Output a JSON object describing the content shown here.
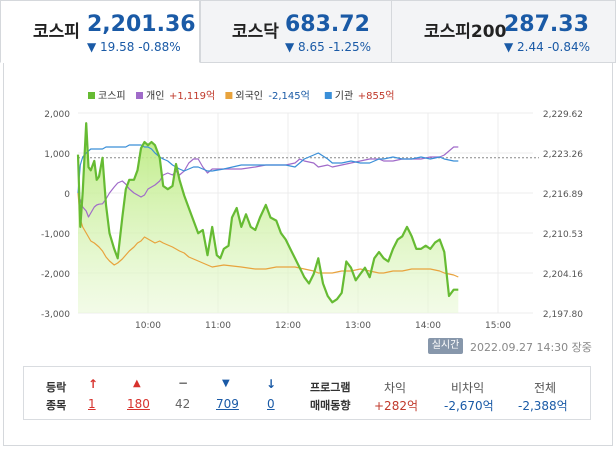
{
  "tabs": [
    {
      "name": "코스피",
      "value": "2,201.36",
      "change": "▼ 19.58 -0.88%",
      "active": true
    },
    {
      "name": "코스닥",
      "value": "683.72",
      "change": "▼ 8.65 -1.25%",
      "active": false
    },
    {
      "name": "코스피200",
      "value": "287.33",
      "change": "▼ 2.44 -0.84%",
      "active": false
    }
  ],
  "legend": [
    {
      "name": "코스피",
      "value": "",
      "color": "#66bb33",
      "value_color": ""
    },
    {
      "name": "개인",
      "value": "+1,119억",
      "color": "#a06bc9",
      "value_color": "#c0392b"
    },
    {
      "name": "외국인",
      "value": "-2,145억",
      "color": "#e8a33d",
      "value_color": "#1a5aa6"
    },
    {
      "name": "기관",
      "value": "+855억",
      "color": "#3a8fd8",
      "value_color": "#c0392b"
    }
  ],
  "chart_data": {
    "type": "line",
    "x_ticks": [
      "10:00",
      "11:00",
      "12:00",
      "13:00",
      "14:00",
      "15:00"
    ],
    "left_axis": {
      "ticks": [
        "2,000",
        "1,000",
        "0",
        "-1,000",
        "-2,000",
        "-3,000"
      ],
      "range": [
        -3000,
        2000
      ]
    },
    "right_axis": {
      "ticks": [
        "2,229.62",
        "2,223.26",
        "2,216.89",
        "2,210.53",
        "2,204.16",
        "2,197.80"
      ],
      "range": [
        2197.8,
        2229.62
      ]
    },
    "reference_level": 2222.5,
    "series": [
      {
        "name": "코스피",
        "axis": "right",
        "color": "#66bb33",
        "area": true,
        "x": [
          "09:00",
          "09:02",
          "09:04",
          "09:07",
          "09:09",
          "09:11",
          "09:14",
          "09:16",
          "09:18",
          "09:21",
          "09:24",
          "09:27",
          "09:31",
          "09:34",
          "09:38",
          "09:41",
          "09:44",
          "09:48",
          "09:51",
          "09:54",
          "09:57",
          "10:00",
          "10:03",
          "10:06",
          "10:10",
          "10:13",
          "10:17",
          "10:21",
          "10:24",
          "10:27",
          "10:31",
          "10:35",
          "10:39",
          "10:43",
          "10:47",
          "10:51",
          "10:55",
          "10:59",
          "11:02",
          "11:05",
          "11:09",
          "11:12",
          "11:16",
          "11:20",
          "11:24",
          "11:28",
          "11:32",
          "11:36",
          "11:41",
          "11:45",
          "11:50",
          "11:54",
          "11:58",
          "12:02",
          "12:06",
          "12:10",
          "12:14",
          "12:18",
          "12:22",
          "12:26",
          "12:30",
          "12:34",
          "12:38",
          "12:42",
          "12:46",
          "12:50",
          "12:54",
          "12:58",
          "13:02",
          "13:06",
          "13:10",
          "13:14",
          "13:18",
          "13:22",
          "13:26",
          "13:30",
          "13:34",
          "13:38",
          "13:42",
          "13:46",
          "13:50",
          "13:54",
          "13:58",
          "14:02",
          "14:06",
          "14:10",
          "14:14",
          "14:18",
          "14:22",
          "14:26"
        ],
        "values": [
          2223.0,
          2211.5,
          2217.0,
          2228.0,
          2221.0,
          2220.5,
          2222.0,
          2219.0,
          2219.5,
          2222.5,
          2215.0,
          2210.5,
          2208.0,
          2206.5,
          2213.0,
          2217.5,
          2219.0,
          2219.0,
          2220.5,
          2224.0,
          2225.0,
          2224.5,
          2225.0,
          2224.5,
          2222.5,
          2218.0,
          2217.5,
          2218.0,
          2221.5,
          2219.0,
          2216.5,
          2214.5,
          2212.5,
          2210.5,
          2211.0,
          2207.0,
          2211.5,
          2207.0,
          2206.5,
          2208.0,
          2208.5,
          2213.0,
          2214.5,
          2211.5,
          2213.5,
          2211.5,
          2211.0,
          2213.0,
          2215.0,
          2213.0,
          2212.5,
          2210.5,
          2209.5,
          2208.0,
          2206.5,
          2205.0,
          2203.5,
          2202.5,
          2204.0,
          2206.5,
          2202.5,
          2200.5,
          2199.5,
          2200.0,
          2201.0,
          2206.0,
          2205.0,
          2203.0,
          2204.0,
          2205.0,
          2203.5,
          2206.5,
          2207.5,
          2206.5,
          2206.0,
          2208.0,
          2209.5,
          2210.0,
          2211.5,
          2210.0,
          2208.0,
          2208.0,
          2208.5,
          2208.0,
          2209.0,
          2209.5,
          2207.5,
          2200.5,
          2201.5,
          2201.5
        ]
      },
      {
        "name": "개인",
        "axis": "left",
        "color": "#a06bc9",
        "x": [
          "09:00",
          "09:04",
          "09:07",
          "09:09",
          "09:11",
          "09:14",
          "09:16",
          "09:18",
          "09:21",
          "09:24",
          "09:27",
          "09:31",
          "09:34",
          "09:38",
          "09:41",
          "09:44",
          "09:48",
          "09:51",
          "09:54",
          "09:57",
          "10:00",
          "10:03",
          "10:06",
          "10:10",
          "10:13",
          "10:17",
          "10:21",
          "10:24",
          "10:27",
          "10:31",
          "10:35",
          "10:39",
          "10:43",
          "10:47",
          "10:51",
          "10:55",
          "11:05",
          "11:20",
          "11:32",
          "11:41",
          "11:50",
          "11:58",
          "12:06",
          "12:10",
          "12:14",
          "12:22",
          "12:26",
          "12:34",
          "12:38",
          "12:46",
          "12:54",
          "13:02",
          "13:10",
          "13:18",
          "13:22",
          "13:30",
          "13:38",
          "13:46",
          "13:54",
          "14:02",
          "14:10",
          "14:14",
          "14:22",
          "14:26"
        ],
        "values": [
          0,
          -350,
          -450,
          -600,
          -500,
          -350,
          -300,
          -280,
          -270,
          -150,
          0,
          150,
          250,
          300,
          220,
          100,
          0,
          -50,
          -100,
          -50,
          100,
          150,
          200,
          300,
          450,
          500,
          450,
          550,
          450,
          550,
          750,
          850,
          850,
          650,
          500,
          600,
          600,
          600,
          650,
          700,
          700,
          700,
          750,
          850,
          800,
          750,
          650,
          700,
          650,
          700,
          750,
          800,
          850,
          850,
          800,
          800,
          850,
          850,
          850,
          900,
          900,
          950,
          1150,
          1150
        ]
      },
      {
        "name": "외국인",
        "axis": "left",
        "color": "#e8a33d",
        "x": [
          "09:00",
          "09:02",
          "09:04",
          "09:07",
          "09:09",
          "09:11",
          "09:14",
          "09:16",
          "09:18",
          "09:21",
          "09:24",
          "09:27",
          "09:31",
          "09:34",
          "09:38",
          "09:41",
          "09:44",
          "09:48",
          "09:51",
          "09:54",
          "09:57",
          "10:00",
          "10:03",
          "10:06",
          "10:10",
          "10:13",
          "10:17",
          "10:21",
          "10:24",
          "10:27",
          "10:31",
          "10:35",
          "10:39",
          "10:43",
          "10:47",
          "10:51",
          "10:55",
          "11:05",
          "11:20",
          "11:32",
          "11:41",
          "11:50",
          "11:58",
          "12:06",
          "12:14",
          "12:22",
          "12:26",
          "12:34",
          "12:38",
          "12:46",
          "12:54",
          "13:02",
          "13:10",
          "13:18",
          "13:22",
          "13:30",
          "13:38",
          "13:46",
          "13:54",
          "14:02",
          "14:10",
          "14:14",
          "14:22",
          "14:26"
        ],
        "values": [
          0,
          -650,
          -850,
          -1000,
          -1100,
          -1200,
          -1250,
          -1300,
          -1350,
          -1450,
          -1600,
          -1700,
          -1800,
          -1750,
          -1650,
          -1550,
          -1450,
          -1350,
          -1250,
          -1200,
          -1100,
          -1150,
          -1200,
          -1250,
          -1200,
          -1250,
          -1300,
          -1350,
          -1400,
          -1450,
          -1500,
          -1600,
          -1650,
          -1700,
          -1750,
          -1800,
          -1850,
          -1800,
          -1850,
          -1900,
          -1900,
          -1850,
          -1850,
          -1850,
          -1900,
          -1950,
          -2000,
          -2000,
          -2000,
          -1950,
          -1950,
          -1900,
          -1950,
          -2000,
          -2000,
          -1950,
          -1950,
          -1900,
          -1900,
          -1900,
          -1950,
          -2000,
          -2050,
          -2100
        ]
      },
      {
        "name": "기관",
        "axis": "left",
        "color": "#3a8fd8",
        "x": [
          "09:00",
          "09:02",
          "09:04",
          "09:07",
          "09:09",
          "09:11",
          "09:14",
          "09:16",
          "09:18",
          "09:21",
          "09:24",
          "09:27",
          "09:31",
          "09:34",
          "09:38",
          "09:41",
          "09:44",
          "09:48",
          "09:51",
          "09:54",
          "09:57",
          "10:00",
          "10:03",
          "10:06",
          "10:10",
          "10:13",
          "10:17",
          "10:21",
          "10:24",
          "10:27",
          "10:31",
          "10:35",
          "10:39",
          "10:43",
          "10:47",
          "10:51",
          "10:55",
          "11:05",
          "11:20",
          "11:32",
          "11:41",
          "11:50",
          "11:58",
          "12:06",
          "12:10",
          "12:14",
          "12:22",
          "12:26",
          "12:34",
          "12:38",
          "12:46",
          "12:54",
          "13:02",
          "13:10",
          "13:18",
          "13:22",
          "13:30",
          "13:38",
          "13:46",
          "13:54",
          "14:02",
          "14:10",
          "14:14",
          "14:22",
          "14:26"
        ],
        "values": [
          0,
          700,
          900,
          1000,
          1050,
          1100,
          1100,
          1100,
          1100,
          1100,
          1150,
          1150,
          1150,
          1150,
          1150,
          1150,
          1200,
          1200,
          1200,
          1200,
          1150,
          1150,
          1100,
          1000,
          900,
          850,
          800,
          700,
          650,
          600,
          550,
          600,
          650,
          650,
          600,
          550,
          550,
          600,
          700,
          700,
          700,
          700,
          700,
          650,
          750,
          850,
          950,
          1000,
          850,
          750,
          750,
          800,
          750,
          750,
          850,
          850,
          900,
          850,
          850,
          900,
          850,
          900,
          850,
          800,
          800
        ]
      }
    ]
  },
  "toolbar": {
    "realtime_label": "실시간",
    "timestamp": "2022.09.27 14:30 장중"
  },
  "bottom": {
    "label_top": "등락",
    "label_bottom": "종목",
    "items": [
      {
        "symbol": "↑",
        "count": "1",
        "color": "#d7322d",
        "symbol_color": "#d7322d"
      },
      {
        "symbol": "▲",
        "count": "180",
        "color": "#d7322d",
        "symbol_color": "#d7322d"
      },
      {
        "symbol": "−",
        "count": "42",
        "color": "#666666",
        "symbol_color": "#666666"
      },
      {
        "symbol": "▼",
        "count": "709",
        "color": "#1a5aa6",
        "symbol_color": "#1a5aa6"
      },
      {
        "symbol": "↓",
        "count": "0",
        "color": "#1a5aa6",
        "symbol_color": "#1a5aa6"
      }
    ],
    "program_label_top": "프로그램",
    "program_label_bottom": "매매동향",
    "program": [
      {
        "label": "차익",
        "value": "+282억",
        "color": "#c0392b"
      },
      {
        "label": "비차익",
        "value": "-2,670억",
        "color": "#1a5aa6"
      },
      {
        "label": "전체",
        "value": "-2,388억",
        "color": "#1a5aa6"
      }
    ]
  }
}
